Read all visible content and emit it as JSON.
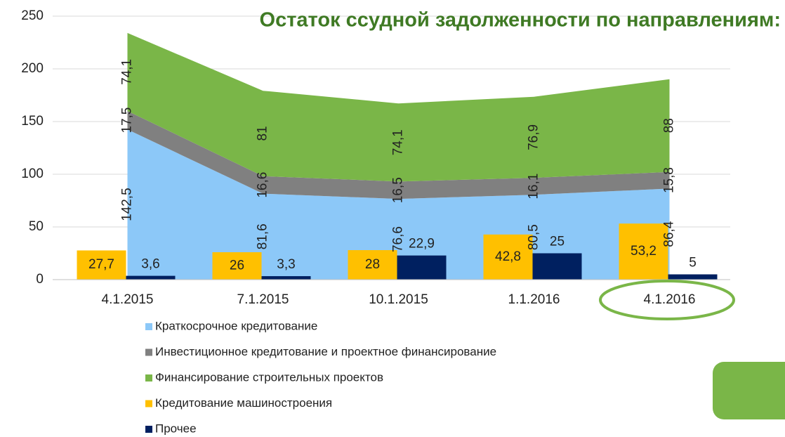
{
  "chart_data": {
    "type": "combo",
    "title": "Остаток ссудной задолженности по направлениям:",
    "categories": [
      "4.1.2015",
      "7.1.2015",
      "10.1.2015",
      "1.1.2016",
      "4.1.2016"
    ],
    "series": [
      {
        "name": "Краткосрочное кредитование",
        "type": "area",
        "color": "#8cc8f8",
        "values": [
          142.5,
          81.6,
          76.6,
          80.5,
          86.4
        ],
        "value_labels": [
          "142,5",
          "81,6",
          "76,6",
          "80,5",
          "86,4"
        ]
      },
      {
        "name": "Инвестиционное кредитование и проектное финансирование",
        "type": "area",
        "color": "#808080",
        "values": [
          17.5,
          16.6,
          16.5,
          16.1,
          15.8
        ],
        "value_labels": [
          "17,5",
          "16,6",
          "16,5",
          "16,1",
          "15,8"
        ]
      },
      {
        "name": "Финансирование строительных проектов",
        "type": "area",
        "color": "#7ab648",
        "values": [
          74.1,
          81,
          74.1,
          76.9,
          88
        ],
        "value_labels": [
          "74,1",
          "81",
          "74,1",
          "76,9",
          "88"
        ]
      },
      {
        "name": "Кредитование машиностроения",
        "type": "bar",
        "color": "#ffc000",
        "values": [
          27.7,
          26,
          28,
          42.8,
          53.2
        ],
        "value_labels": [
          "27,7",
          "26",
          "28",
          "42,8",
          "53,2"
        ]
      },
      {
        "name": "Прочее",
        "type": "bar",
        "color": "#002060",
        "values": [
          3.6,
          3.3,
          22.9,
          25,
          5
        ],
        "value_labels": [
          "3,6",
          "3,3",
          "22,9",
          "25",
          "5"
        ]
      }
    ],
    "ylim": [
      0,
      250
    ],
    "yticks": [
      0,
      50,
      100,
      150,
      200,
      250
    ],
    "grid": true,
    "legend": "bottom"
  }
}
